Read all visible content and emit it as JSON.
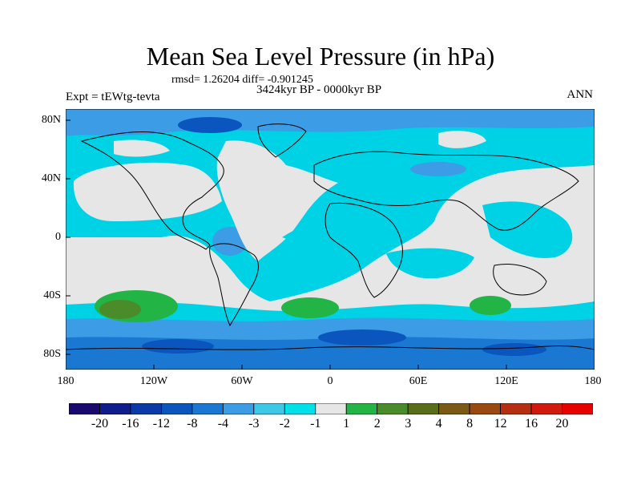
{
  "header": {
    "title": "Mean Sea Level Pressure (in hPa)",
    "stats": "rmsd= 1.26204 diff= -0.901245",
    "period": "3424kyr BP - 0000kyr BP",
    "experiment": "Expt = tEWtg-tevta",
    "season": "ANN"
  },
  "axes": {
    "lat_labels": [
      "80N",
      "40N",
      "0",
      "40S",
      "80S"
    ],
    "lon_labels": [
      "180",
      "120W",
      "60W",
      "0",
      "60E",
      "120E",
      "180"
    ]
  },
  "colorbar": {
    "colors": [
      "#1a0a6e",
      "#0f1e8c",
      "#0a3aa8",
      "#0a55be",
      "#1a78d2",
      "#3c9ce6",
      "#3cc8e6",
      "#00e0e8",
      "#e6e6e6",
      "#22b444",
      "#4a8c2a",
      "#5a6e1a",
      "#7a5a14",
      "#9a4a10",
      "#b43010",
      "#d21a0c",
      "#e60000"
    ],
    "labels": [
      "-20",
      "-16",
      "-12",
      "-8",
      "-4",
      "-3",
      "-2",
      "-1",
      "1",
      "2",
      "3",
      "4",
      "8",
      "12",
      "16",
      "20"
    ]
  },
  "colors": {
    "cyan": "#00d2e6",
    "blue": "#3c9ce6",
    "dark_blue": "#0a55be",
    "grey": "#e6e6e6",
    "green": "#22b444"
  }
}
